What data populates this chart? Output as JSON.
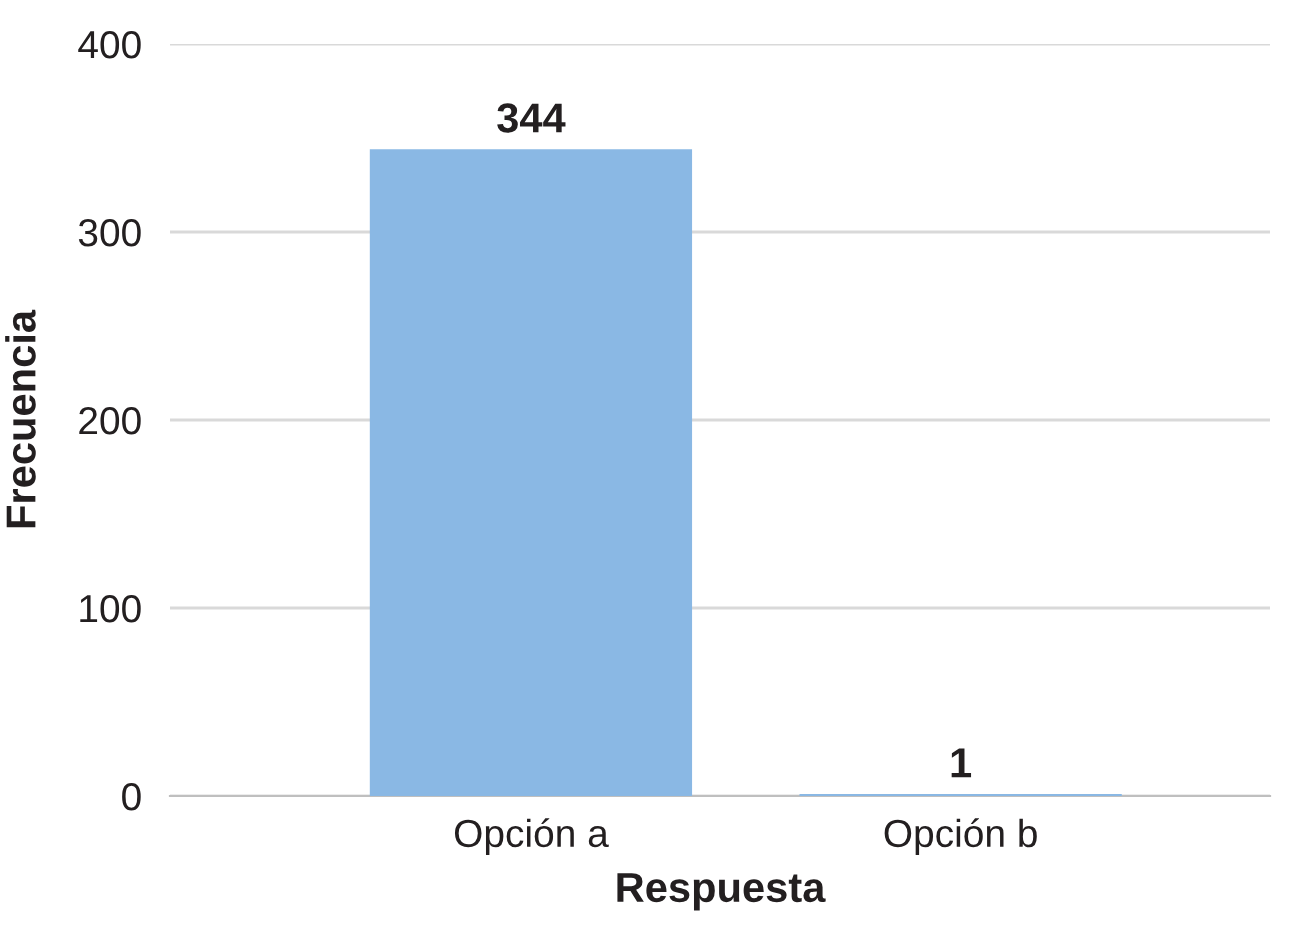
{
  "chart_data": {
    "type": "bar",
    "xlabel": "Respuesta",
    "ylabel": "Frecuencia",
    "categories": [
      "Opción a",
      "Opción b"
    ],
    "values": [
      344,
      1
    ],
    "color": "#8ab8e4",
    "ylim": [
      0,
      400
    ],
    "yticks": [
      0,
      100,
      200,
      300,
      400
    ],
    "grid": "y",
    "data_labels": true
  }
}
